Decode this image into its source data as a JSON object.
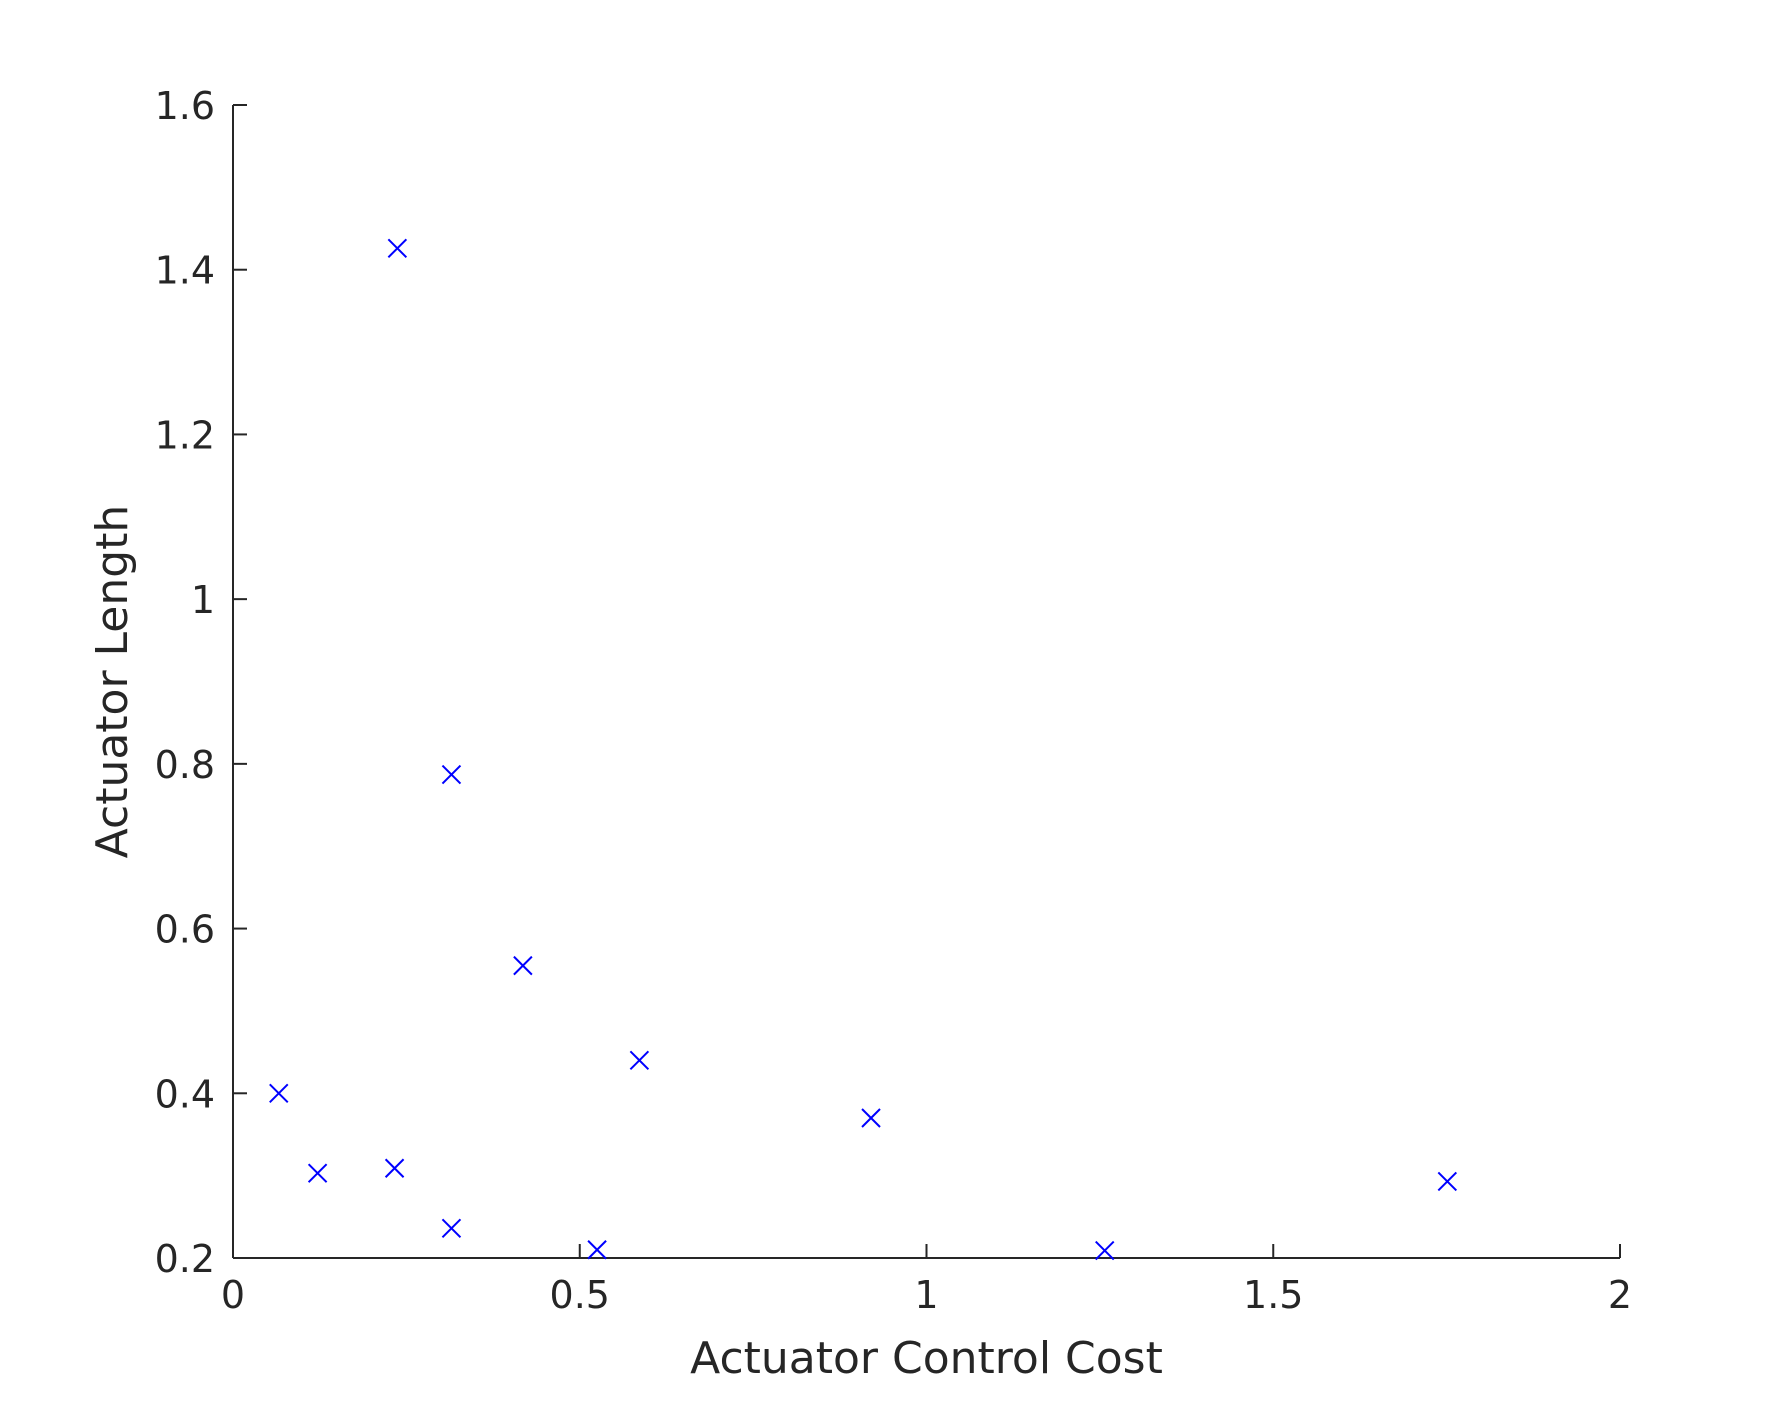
{
  "chart_data": {
    "type": "scatter",
    "title": "",
    "xlabel": "Actuator Control Cost",
    "ylabel": "Actuator Length",
    "xlim": [
      0,
      2
    ],
    "ylim": [
      0.2,
      1.6
    ],
    "xticks": [
      0,
      0.5,
      1,
      1.5,
      2
    ],
    "xtick_labels": [
      "0",
      "0.5",
      "1",
      "1.5",
      "2"
    ],
    "yticks": [
      0.2,
      0.4,
      0.6,
      0.8,
      1,
      1.2,
      1.4,
      1.6
    ],
    "ytick_labels": [
      "0.2",
      "0.4",
      "0.6",
      "0.8",
      "1",
      "1.2",
      "1.4",
      "1.6"
    ],
    "grid": false,
    "marker": "x",
    "marker_color": "#0000ff",
    "axis_color": "#262626",
    "series": [
      {
        "points": [
          {
            "x": 0.066,
            "y": 0.4
          },
          {
            "x": 0.122,
            "y": 0.303
          },
          {
            "x": 0.233,
            "y": 0.309
          },
          {
            "x": 0.237,
            "y": 1.426
          },
          {
            "x": 0.315,
            "y": 0.787
          },
          {
            "x": 0.315,
            "y": 0.236
          },
          {
            "x": 0.418,
            "y": 0.555
          },
          {
            "x": 0.525,
            "y": 0.21
          },
          {
            "x": 0.586,
            "y": 0.44
          },
          {
            "x": 0.92,
            "y": 0.37
          },
          {
            "x": 1.257,
            "y": 0.209
          },
          {
            "x": 1.751,
            "y": 0.293
          }
        ]
      }
    ]
  }
}
